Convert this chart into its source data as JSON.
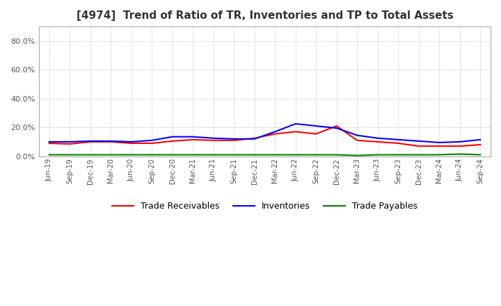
{
  "title": "[4974]  Trend of Ratio of TR, Inventories and TP to Total Assets",
  "x_labels": [
    "Jun-19",
    "Sep-19",
    "Dec-19",
    "Mar-20",
    "Jun-20",
    "Sep-20",
    "Dec-20",
    "Mar-21",
    "Jun-21",
    "Sep-21",
    "Dec-21",
    "Mar-22",
    "Jun-22",
    "Sep-22",
    "Dec-22",
    "Mar-23",
    "Jun-23",
    "Sep-23",
    "Dec-23",
    "Mar-24",
    "Jun-24",
    "Sep-24"
  ],
  "trade_receivables": [
    0.09,
    0.085,
    0.1,
    0.1,
    0.09,
    0.09,
    0.105,
    0.115,
    0.11,
    0.11,
    0.125,
    0.155,
    0.17,
    0.155,
    0.21,
    0.11,
    0.1,
    0.09,
    0.07,
    0.07,
    0.07,
    0.08
  ],
  "inventories": [
    0.1,
    0.1,
    0.105,
    0.105,
    0.1,
    0.11,
    0.135,
    0.135,
    0.125,
    0.12,
    0.12,
    0.17,
    0.225,
    0.21,
    0.195,
    0.145,
    0.125,
    0.115,
    0.105,
    0.095,
    0.1,
    0.115
  ],
  "trade_payables": [
    0.01,
    0.01,
    0.01,
    0.01,
    0.01,
    0.01,
    0.01,
    0.01,
    0.01,
    0.01,
    0.01,
    0.01,
    0.01,
    0.01,
    0.01,
    0.005,
    0.01,
    0.01,
    0.01,
    0.01,
    0.015,
    0.01
  ],
  "ylim": [
    0.0,
    0.9
  ],
  "yticks": [
    0.0,
    0.2,
    0.4,
    0.6,
    0.8
  ],
  "ytick_labels": [
    "0.0%",
    "20.0%",
    "40.0%",
    "60.0%",
    "80.0%"
  ],
  "color_tr": "#FF0000",
  "color_inv": "#0000FF",
  "color_tp": "#008000",
  "legend_labels": [
    "Trade Receivables",
    "Inventories",
    "Trade Payables"
  ],
  "background_color": "#FFFFFF",
  "grid_color": "#AAAAAA"
}
